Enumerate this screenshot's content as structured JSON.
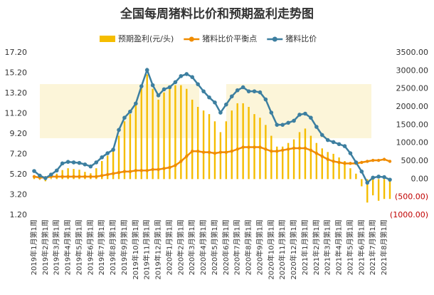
{
  "chart_data": {
    "type": "combo",
    "title": "全国每周猪料比价和预期盈利走势图",
    "categories": [
      "2019年1月第1周",
      null,
      "2019年2月第1周",
      null,
      "2019年3月第1周",
      null,
      "2019年4月第1周",
      null,
      "2019年5月第1周",
      null,
      "2019年6月第1周",
      null,
      "2019年7月第1周",
      null,
      "2019年8月第1周",
      null,
      "2019年9月第1周",
      null,
      "2019年10月第1周",
      null,
      "2019年11月第1周",
      null,
      "2019年12月第1周",
      null,
      "2020年1月第1周",
      null,
      "2020年2月第1周",
      null,
      "2020年3月第1周",
      null,
      "2020年4月第1周",
      null,
      "2020年5月第1周",
      null,
      "2020年6月第1周",
      null,
      "2020年7月第1周",
      null,
      "2020年8月第1周",
      null,
      "2020年9月第1周",
      null,
      "2020年10月第1周",
      null,
      "2020年11月第1周",
      null,
      "2020年12月第1周",
      null,
      "2021年1月第1周",
      null,
      "2021年2月第1周",
      null,
      "2021年3月第1周",
      null,
      "2021年4月第1周",
      null,
      "2021年5月第1周",
      null,
      "2021年6月第1周",
      null,
      "2021年7月第1周",
      null,
      "2021年8月第1周",
      null
    ],
    "series": [
      {
        "name": "预期盈利(元/头)",
        "kind": "bar",
        "axis": "y2",
        "color": "#f5bd00",
        "values": [
          80,
          -20,
          -60,
          20,
          150,
          250,
          300,
          280,
          260,
          200,
          160,
          300,
          500,
          650,
          800,
          1200,
          1600,
          1800,
          2100,
          2600,
          2900,
          2500,
          2200,
          2400,
          2500,
          2600,
          2600,
          2500,
          2200,
          2000,
          1900,
          1800,
          1600,
          1300,
          1600,
          1900,
          2100,
          2100,
          2000,
          1800,
          1700,
          1500,
          1200,
          900,
          900,
          1000,
          1100,
          1300,
          1400,
          1200,
          1000,
          850,
          750,
          700,
          600,
          500,
          300,
          150,
          -200,
          -650,
          -450,
          -600,
          -550,
          -550
        ]
      },
      {
        "name": "猪料比价平衡点",
        "kind": "line",
        "color": "#f08c00",
        "values": [
          5.0,
          4.9,
          4.9,
          5.0,
          5.0,
          5.0,
          5.0,
          5.0,
          5.0,
          5.0,
          5.0,
          5.0,
          5.1,
          5.2,
          5.3,
          5.4,
          5.5,
          5.5,
          5.6,
          5.6,
          5.6,
          5.7,
          5.7,
          5.8,
          5.9,
          6.1,
          6.5,
          7.0,
          7.5,
          7.5,
          7.4,
          7.4,
          7.3,
          7.4,
          7.4,
          7.5,
          7.7,
          7.9,
          7.9,
          7.9,
          7.9,
          7.7,
          7.5,
          7.5,
          7.6,
          7.7,
          7.8,
          7.8,
          7.8,
          7.6,
          7.3,
          7.0,
          6.7,
          6.5,
          6.4,
          6.3,
          6.3,
          6.3,
          6.4,
          6.5,
          6.6,
          6.6,
          6.7,
          6.5
        ]
      },
      {
        "name": "猪料比价",
        "kind": "line",
        "color": "#3d7fa0",
        "values": [
          5.55,
          5.1,
          4.85,
          5.2,
          5.6,
          6.3,
          6.45,
          6.4,
          6.35,
          6.2,
          6.0,
          6.4,
          6.9,
          7.3,
          7.65,
          9.6,
          10.8,
          11.4,
          12.2,
          13.9,
          15.5,
          14.0,
          13.0,
          13.6,
          13.8,
          14.3,
          14.9,
          15.1,
          14.8,
          14.1,
          13.4,
          12.8,
          12.3,
          11.3,
          12.1,
          12.9,
          13.5,
          13.8,
          13.4,
          13.4,
          13.3,
          12.6,
          11.3,
          10.1,
          10.1,
          10.3,
          10.5,
          11.1,
          11.2,
          10.8,
          9.9,
          9.1,
          8.6,
          8.4,
          8.2,
          8.0,
          7.3,
          6.4,
          5.5,
          4.4,
          4.9,
          5.0,
          4.95,
          4.7
        ]
      }
    ],
    "ylim": [
      1.2,
      17.2
    ],
    "yticks": [
      {
        "value": 1.2,
        "label": "1.20"
      },
      {
        "value": 3.2,
        "label": "3.20"
      },
      {
        "value": 5.2,
        "label": "5.20"
      },
      {
        "value": 7.2,
        "label": "7.20"
      },
      {
        "value": 9.2,
        "label": "9.20"
      },
      {
        "value": 11.2,
        "label": "11.20"
      },
      {
        "value": 13.2,
        "label": "13.20"
      },
      {
        "value": 15.2,
        "label": "15.20"
      },
      {
        "value": 17.2,
        "label": "17.20"
      }
    ],
    "y2lim": [
      -1000,
      3500
    ],
    "y2ticks": [
      {
        "value": -1000,
        "label": "(1000.00)"
      },
      {
        "value": -500,
        "label": "(500.00)"
      },
      {
        "value": 0,
        "label": "0.00"
      },
      {
        "value": 500,
        "label": "500.00"
      },
      {
        "value": 1000,
        "label": "1000.00"
      },
      {
        "value": 1500,
        "label": "1500.00"
      },
      {
        "value": 2000,
        "label": "2000.00"
      },
      {
        "value": 2500,
        "label": "2500.00"
      },
      {
        "value": 3000,
        "label": "3000.00"
      },
      {
        "value": 3500,
        "label": "3500.00"
      }
    ],
    "legend": "top"
  }
}
